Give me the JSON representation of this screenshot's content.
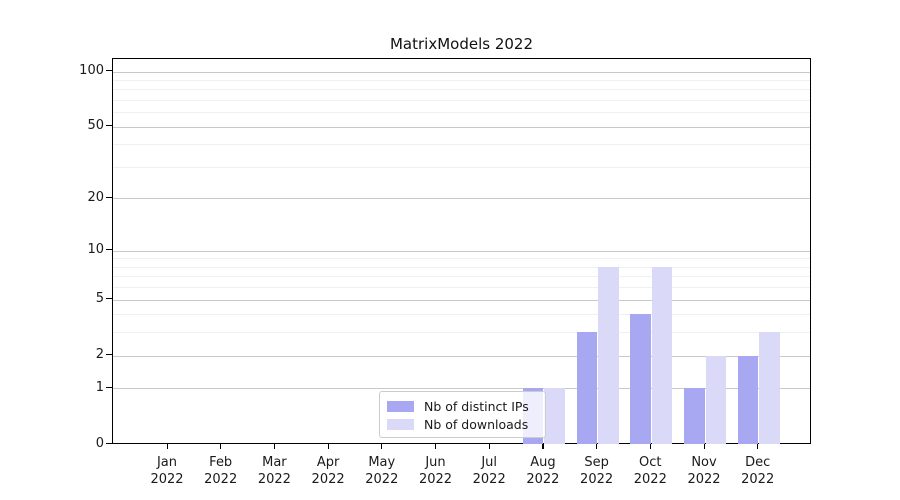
{
  "chart_data": {
    "type": "bar",
    "title": "MatrixModels 2022",
    "categories": [
      "Jan\n2022",
      "Feb\n2022",
      "Mar\n2022",
      "Apr\n2022",
      "May\n2022",
      "Jun\n2022",
      "Jul\n2022",
      "Aug\n2022",
      "Sep\n2022",
      "Oct\n2022",
      "Nov\n2022",
      "Dec\n2022"
    ],
    "series": [
      {
        "name": "Nb of distinct IPs",
        "color": "#a8a8f2",
        "values": [
          0,
          0,
          0,
          0,
          0,
          0,
          0,
          1,
          3,
          4,
          1,
          2
        ]
      },
      {
        "name": "Nb of downloads",
        "color": "#dadaf8",
        "values": [
          0,
          0,
          0,
          0,
          0,
          0,
          0,
          1,
          8,
          8,
          2,
          3
        ]
      }
    ],
    "yscale": "log1p",
    "ylim": [
      0,
      117
    ],
    "yticks_major": [
      0,
      1,
      2,
      5,
      10,
      20,
      50,
      100
    ],
    "yticks_minor": [
      3,
      4,
      6,
      7,
      8,
      9,
      30,
      40,
      60,
      70,
      80,
      90
    ],
    "xlabel": "",
    "ylabel": "",
    "grid": "both",
    "legend_position": "lower-center",
    "colors": {
      "grid_major": "#c9c9c9",
      "grid_minor": "#f0f0f0",
      "spine": "#000000",
      "text": "#1a1a1a"
    }
  }
}
